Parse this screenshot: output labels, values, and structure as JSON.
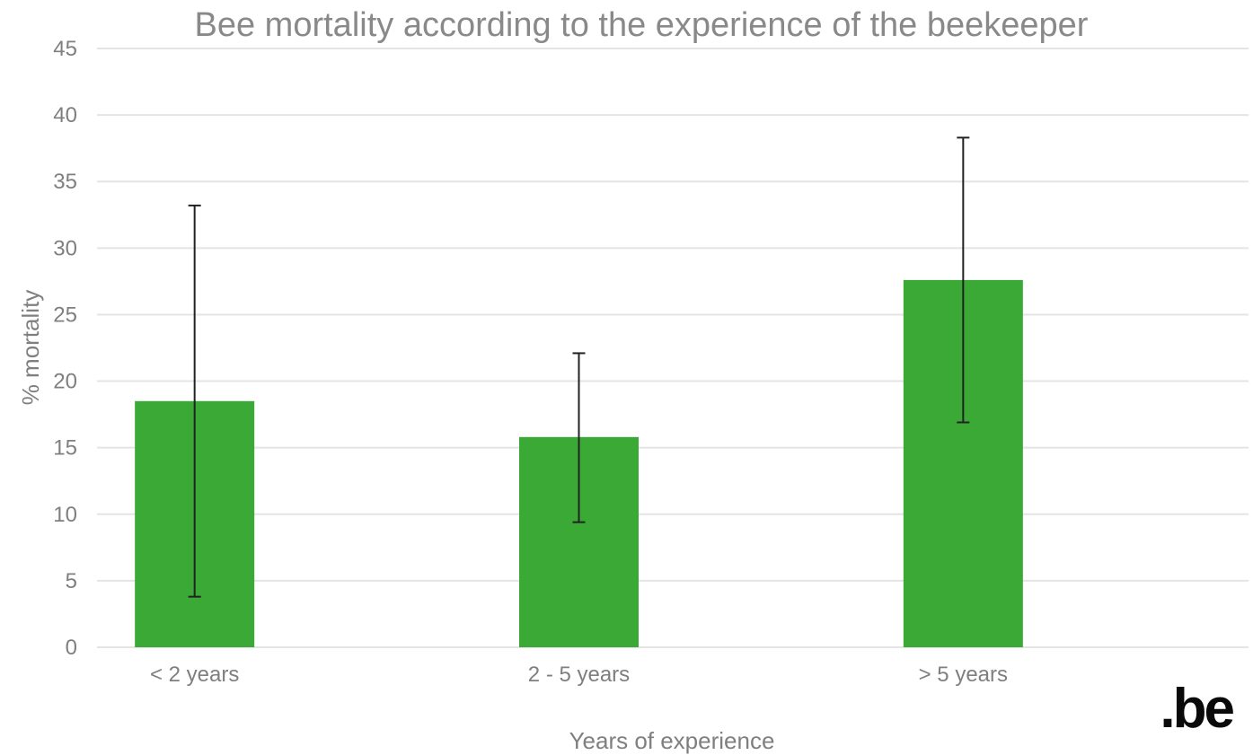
{
  "chart_data": {
    "type": "bar",
    "title": "Bee mortality according to the experience of the beekeeper",
    "xlabel": "Years of experience",
    "ylabel": "% mortality",
    "categories": [
      "< 2 years",
      "2 - 5 years",
      "> 5 years"
    ],
    "series": [
      {
        "values": [
          18.5,
          15.8,
          27.6
        ],
        "error_low": [
          3.8,
          9.4,
          16.9
        ],
        "error_high": [
          33.2,
          22.1,
          38.3
        ]
      }
    ],
    "ylim": [
      0,
      45
    ],
    "yticks": [
      "0",
      "5",
      "10",
      "15",
      "20",
      "25",
      "30",
      "35",
      "40",
      "45"
    ],
    "grid": true,
    "bar_color": "#3ba935",
    "errorbar_color": "#222222"
  },
  "logo": {
    "text": ".be"
  }
}
